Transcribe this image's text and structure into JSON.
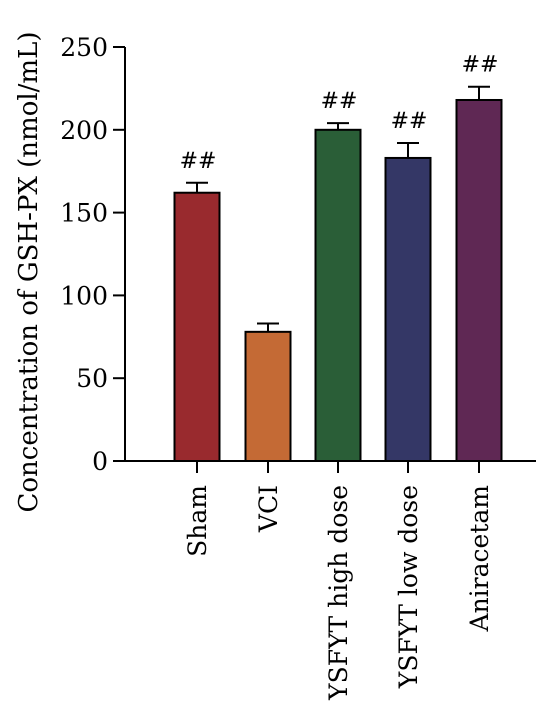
{
  "chart_data": {
    "type": "bar",
    "title": "",
    "xlabel": "",
    "ylabel": "Concentration of GSH-PX (nmol/mL)",
    "ylim": [
      0,
      250
    ],
    "yticks": [
      0,
      50,
      100,
      150,
      200,
      250
    ],
    "grid": false,
    "categories": [
      "Sham",
      "VCI",
      "YSFYT high dose",
      "YSFYT low dose",
      "Aniracetam"
    ],
    "values": [
      162,
      78,
      200,
      183,
      218
    ],
    "errors": [
      6,
      5,
      4,
      9,
      8
    ],
    "annotations": [
      "##",
      "",
      "##",
      "##",
      "##"
    ],
    "colors": [
      "#992a2e",
      "#c46a35",
      "#2a5e37",
      "#343766",
      "#5f2854"
    ]
  }
}
